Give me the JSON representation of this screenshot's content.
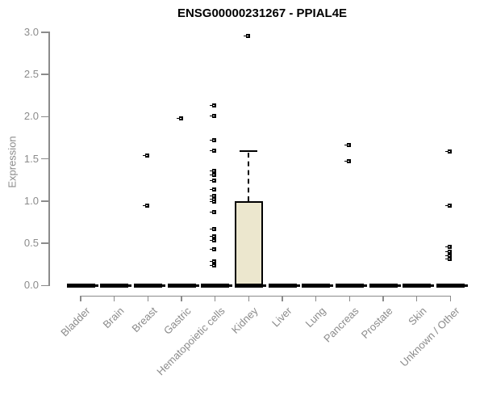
{
  "chart_data": {
    "type": "box",
    "title": "ENSG00000231267 - PPIAL4E",
    "ylabel": "Expression",
    "xlabel": "",
    "ylim": [
      0,
      3
    ],
    "ytick_labels": [
      "0.0",
      "0.5",
      "1.0",
      "1.5",
      "2.0",
      "2.5",
      "3.0"
    ],
    "grid": false,
    "legend": "none",
    "categories": [
      "Bladder",
      "Brain",
      "Breast",
      "Gastric",
      "Hematopoietic cells",
      "Kidney",
      "Liver",
      "Lung",
      "Pancreas",
      "Prostate",
      "Skin",
      "Unknown / Other"
    ],
    "boxes": [
      {
        "category": "Bladder",
        "q1": 0,
        "median": 0,
        "q3": 0,
        "whisker_low": 0,
        "whisker_high": 0,
        "outliers": []
      },
      {
        "category": "Brain",
        "q1": 0,
        "median": 0,
        "q3": 0,
        "whisker_low": 0,
        "whisker_high": 0,
        "outliers": []
      },
      {
        "category": "Breast",
        "q1": 0,
        "median": 0,
        "q3": 0,
        "whisker_low": 0,
        "whisker_high": 0,
        "outliers": [
          1.54,
          0.95
        ]
      },
      {
        "category": "Gastric",
        "q1": 0,
        "median": 0,
        "q3": 0,
        "whisker_low": 0,
        "whisker_high": 0,
        "outliers": [
          1.98
        ]
      },
      {
        "category": "Hematopoietic cells",
        "q1": 0,
        "median": 0,
        "q3": 0,
        "whisker_low": 0,
        "whisker_high": 0,
        "outliers": [
          2.13,
          2.01,
          1.72,
          1.6,
          1.36,
          1.31,
          1.24,
          1.14,
          1.06,
          1.02,
          0.99,
          0.87,
          0.67,
          0.58,
          0.53,
          0.43,
          0.29,
          0.24
        ]
      },
      {
        "category": "Kidney",
        "q1": 0,
        "median": 0,
        "q3": 0.98,
        "whisker_low": 0,
        "whisker_high": 1.59,
        "outliers": [
          2.96
        ]
      },
      {
        "category": "Liver",
        "q1": 0,
        "median": 0,
        "q3": 0,
        "whisker_low": 0,
        "whisker_high": 0,
        "outliers": []
      },
      {
        "category": "Lung",
        "q1": 0,
        "median": 0,
        "q3": 0,
        "whisker_low": 0,
        "whisker_high": 0,
        "outliers": []
      },
      {
        "category": "Pancreas",
        "q1": 0,
        "median": 0,
        "q3": 0,
        "whisker_low": 0,
        "whisker_high": 0,
        "outliers": [
          1.66,
          1.47
        ]
      },
      {
        "category": "Prostate",
        "q1": 0,
        "median": 0,
        "q3": 0,
        "whisker_low": 0,
        "whisker_high": 0,
        "outliers": []
      },
      {
        "category": "Skin",
        "q1": 0,
        "median": 0,
        "q3": 0,
        "whisker_low": 0,
        "whisker_high": 0,
        "outliers": []
      },
      {
        "category": "Unknown / Other",
        "q1": 0,
        "median": 0,
        "q3": 0,
        "whisker_low": 0,
        "whisker_high": 0,
        "outliers": [
          1.59,
          0.95,
          0.46,
          0.4,
          0.35,
          0.31
        ]
      }
    ],
    "colors": {
      "box_fill": "#ece7ce",
      "box_border": "#000000",
      "marker": "#000000",
      "axis": "#8b8b8b",
      "tick_text": "#8b8b8b",
      "title_text": "#000000"
    }
  }
}
